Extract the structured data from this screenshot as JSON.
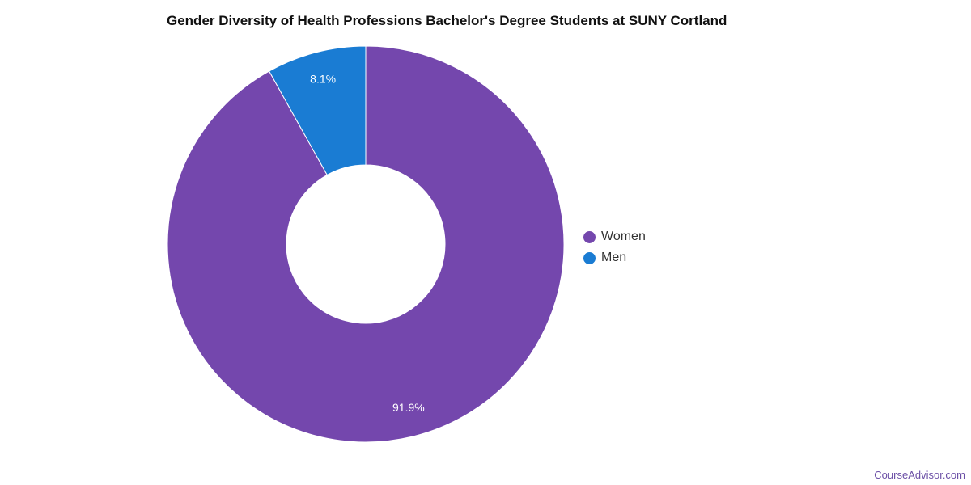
{
  "chart_data": {
    "type": "pie",
    "variant": "donut",
    "title": "Gender Diversity of Health Professions Bachelor's Degree Students at SUNY Cortland",
    "categories": [
      "Women",
      "Men"
    ],
    "values": [
      91.9,
      8.1
    ],
    "data_labels": [
      "91.9%",
      "8.1%"
    ],
    "colors": [
      "#7447ad",
      "#1a7cd3"
    ],
    "legend_placement": "right"
  },
  "watermark": "CourseAdvisor.com"
}
